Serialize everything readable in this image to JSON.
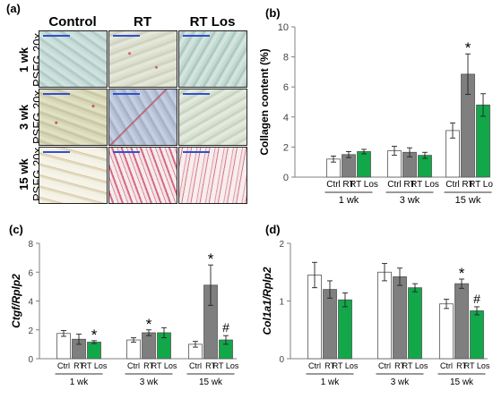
{
  "panel_labels": {
    "a": "(a)",
    "b": "(b)",
    "c": "(c)",
    "d": "(d)"
  },
  "micrographs": {
    "columns": [
      "Control",
      "RT",
      "RT Los"
    ],
    "rows": [
      {
        "time": "1 wk",
        "stain": "PSFG 20x"
      },
      {
        "time": "3 wk",
        "stain": "PSFG 20x"
      },
      {
        "time": "15 wk",
        "stain": "PSFG 20x"
      }
    ]
  },
  "colors": {
    "ctrl": "#ffffff",
    "rt": "#7f7f7f",
    "rtlos": "#12a84a",
    "axis": "#808080"
  },
  "chart_data": [
    {
      "id": "b",
      "type": "bar",
      "ylabel": "Collagen content (%)",
      "ylim": [
        0,
        10
      ],
      "yticks": [
        0,
        2,
        4,
        6,
        8,
        10
      ],
      "groups": [
        "1 wk",
        "3 wk",
        "15 wk"
      ],
      "bar_labels": [
        "Ctrl",
        "RT",
        "RT Los"
      ],
      "series": [
        {
          "name": "Ctrl",
          "values": [
            1.2,
            1.75,
            3.1
          ],
          "errors": [
            0.2,
            0.3,
            0.5
          ]
        },
        {
          "name": "RT",
          "values": [
            1.5,
            1.65,
            6.85
          ],
          "errors": [
            0.2,
            0.3,
            1.35
          ]
        },
        {
          "name": "RT Los",
          "values": [
            1.7,
            1.45,
            4.8
          ],
          "errors": [
            0.15,
            0.2,
            0.75
          ]
        }
      ],
      "annotations": [
        {
          "group": 2,
          "bar": 1,
          "text": "*"
        }
      ]
    },
    {
      "id": "c",
      "type": "bar",
      "ylabel": "Ctgf/Rplp2",
      "ylim": [
        0,
        8
      ],
      "yticks": [
        0,
        2,
        4,
        6,
        8
      ],
      "groups": [
        "1 wk",
        "3 wk",
        "15 wk"
      ],
      "bar_labels": [
        "Ctrl",
        "RT",
        "RT Los"
      ],
      "series": [
        {
          "name": "Ctrl",
          "values": [
            1.75,
            1.3,
            1.0
          ],
          "errors": [
            0.2,
            0.15,
            0.2
          ]
        },
        {
          "name": "RT",
          "values": [
            1.35,
            1.8,
            5.1
          ],
          "errors": [
            0.35,
            0.2,
            1.4
          ]
        },
        {
          "name": "RT Los",
          "values": [
            1.15,
            1.8,
            1.3
          ],
          "errors": [
            0.1,
            0.35,
            0.3
          ]
        }
      ],
      "annotations": [
        {
          "group": 0,
          "bar": 2,
          "text": "*"
        },
        {
          "group": 1,
          "bar": 1,
          "text": "*"
        },
        {
          "group": 2,
          "bar": 1,
          "text": "*"
        },
        {
          "group": 2,
          "bar": 2,
          "text": "#"
        }
      ]
    },
    {
      "id": "d",
      "type": "bar",
      "ylabel": "Col1a1/Rplp2",
      "ylim": [
        0,
        2
      ],
      "yticks": [
        0,
        1,
        2
      ],
      "groups": [
        "1 wk",
        "3 wk",
        "15 wk"
      ],
      "bar_labels": [
        "Ctrl",
        "RT",
        "RT Los"
      ],
      "series": [
        {
          "name": "Ctrl",
          "values": [
            1.45,
            1.5,
            0.95
          ],
          "errors": [
            0.22,
            0.15,
            0.08
          ]
        },
        {
          "name": "RT",
          "values": [
            1.2,
            1.42,
            1.3
          ],
          "errors": [
            0.15,
            0.15,
            0.08
          ]
        },
        {
          "name": "RT Los",
          "values": [
            1.02,
            1.23,
            0.83
          ],
          "errors": [
            0.12,
            0.07,
            0.07
          ]
        }
      ],
      "annotations": [
        {
          "group": 2,
          "bar": 1,
          "text": "*"
        },
        {
          "group": 2,
          "bar": 2,
          "text": "#"
        }
      ]
    }
  ]
}
